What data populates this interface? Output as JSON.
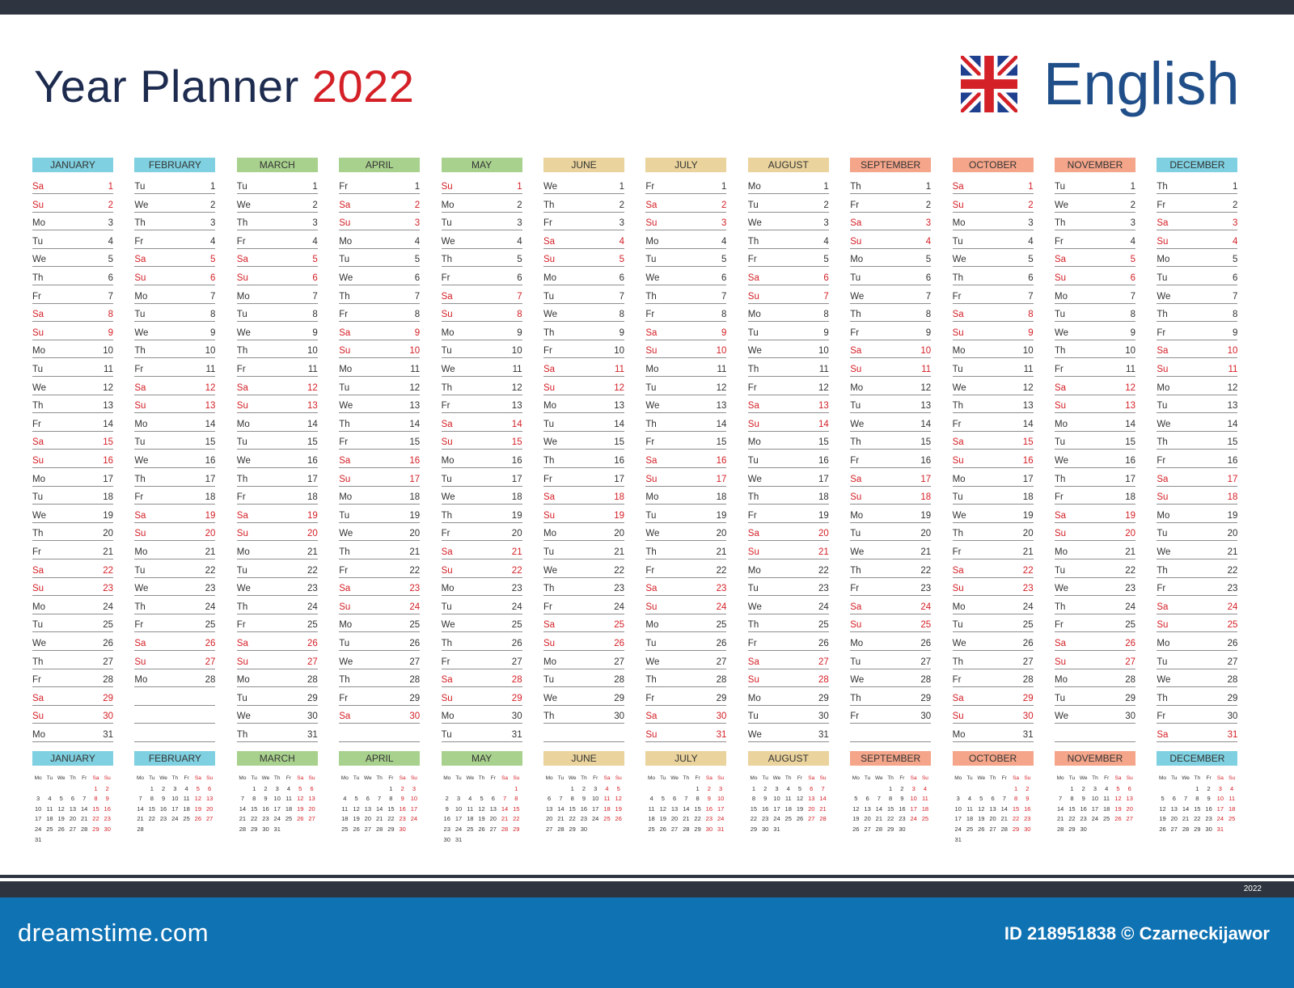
{
  "header": {
    "title": "Year Planner",
    "year": "2022",
    "language": "English",
    "flag_icon": "uk-flag-icon"
  },
  "colors": {
    "title": "#1d2b4f",
    "red": "#d42027",
    "language": "#1f4e89",
    "dark_bar": "#2e3540",
    "footer_blue": "#0f72b3",
    "month_headers": [
      "#7fd0e0",
      "#7fd0e0",
      "#a9d18e",
      "#a9d18e",
      "#a9d18e",
      "#ead39c",
      "#ead39c",
      "#ead39c",
      "#f4a58a",
      "#f4a58a",
      "#f4a58a",
      "#7fd0e0"
    ]
  },
  "calendar": {
    "weekday_abbrev": [
      "Mo",
      "Tu",
      "We",
      "Th",
      "Fr",
      "Sa",
      "Su"
    ],
    "months": [
      {
        "name": "JANUARY",
        "first": 5,
        "days": 31
      },
      {
        "name": "FEBRUARY",
        "first": 1,
        "days": 28
      },
      {
        "name": "MARCH",
        "first": 1,
        "days": 31
      },
      {
        "name": "APRIL",
        "first": 4,
        "days": 30
      },
      {
        "name": "MAY",
        "first": 6,
        "days": 31
      },
      {
        "name": "JUNE",
        "first": 2,
        "days": 30
      },
      {
        "name": "JULY",
        "first": 4,
        "days": 31
      },
      {
        "name": "AUGUST",
        "first": 0,
        "days": 31
      },
      {
        "name": "SEPTEMBER",
        "first": 3,
        "days": 30
      },
      {
        "name": "OCTOBER",
        "first": 5,
        "days": 31
      },
      {
        "name": "NOVEMBER",
        "first": 1,
        "days": 30
      },
      {
        "name": "DECEMBER",
        "first": 3,
        "days": 31
      }
    ]
  },
  "bottom_year": "2022",
  "footer": {
    "logo": "dreamstime.com",
    "credit": "ID 218951838 © Czarneckijawor"
  }
}
